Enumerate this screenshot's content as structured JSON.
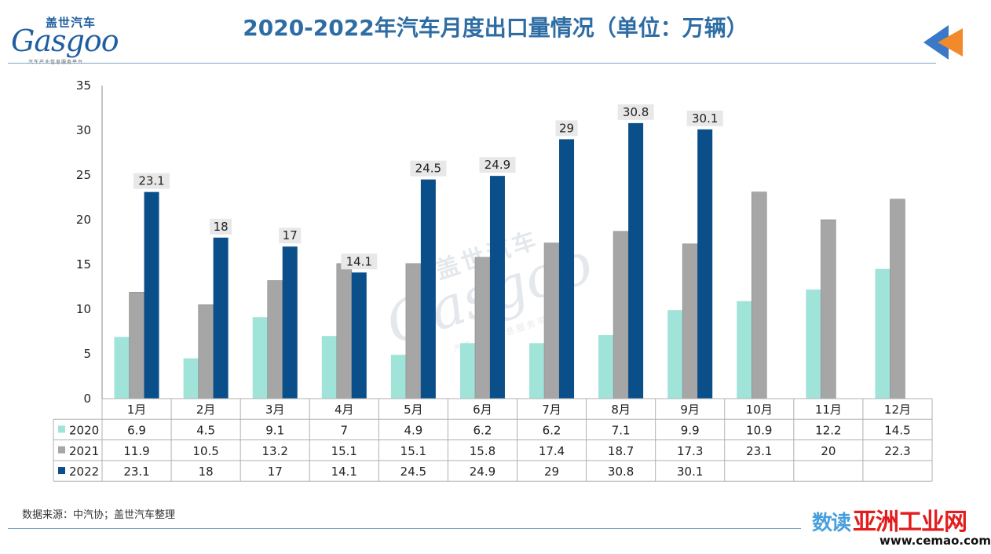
{
  "header": {
    "title": "2020-2022年汽车月度出口量情况（单位：万辆）",
    "logo_cn": "盖世汽车",
    "logo_en": "Gasgoo",
    "logo_sub": "汽车产业信息服务平台"
  },
  "footer": {
    "source": "数据来源：中汽协；盖世汽车整理",
    "watermark_cn1": "数读",
    "watermark_cn2": "亚洲工业网",
    "watermark_url": "www.cemao.com"
  },
  "colors": {
    "s2020": "#9fe3d9",
    "s2021": "#a6a6a6",
    "s2022": "#0b4f8a",
    "label_bg": "#e8e8e8",
    "axis": "#888888",
    "grid": "#b0b0b0"
  },
  "chart_data": {
    "type": "bar",
    "title": "2020-2022年汽车月度出口量情况（单位：万辆）",
    "categories": [
      "1月",
      "2月",
      "3月",
      "4月",
      "5月",
      "6月",
      "7月",
      "8月",
      "9月",
      "10月",
      "11月",
      "12月"
    ],
    "series": [
      {
        "name": "2020",
        "values": [
          6.9,
          4.5,
          9.1,
          7,
          4.9,
          6.2,
          6.2,
          7.1,
          9.9,
          10.9,
          12.2,
          14.5
        ]
      },
      {
        "name": "2021",
        "values": [
          11.9,
          10.5,
          13.2,
          15.1,
          15.1,
          15.8,
          17.4,
          18.7,
          17.3,
          23.1,
          20,
          22.3
        ]
      },
      {
        "name": "2022",
        "values": [
          23.1,
          18,
          17,
          14.1,
          24.5,
          24.9,
          29,
          30.8,
          30.1,
          null,
          null,
          null
        ]
      }
    ],
    "data_labels_series": "2022",
    "ylim": [
      0,
      35
    ],
    "yticks": [
      0,
      5,
      10,
      15,
      20,
      25,
      30,
      35
    ],
    "legend": "data-table-left",
    "xlabel": "",
    "ylabel": ""
  }
}
